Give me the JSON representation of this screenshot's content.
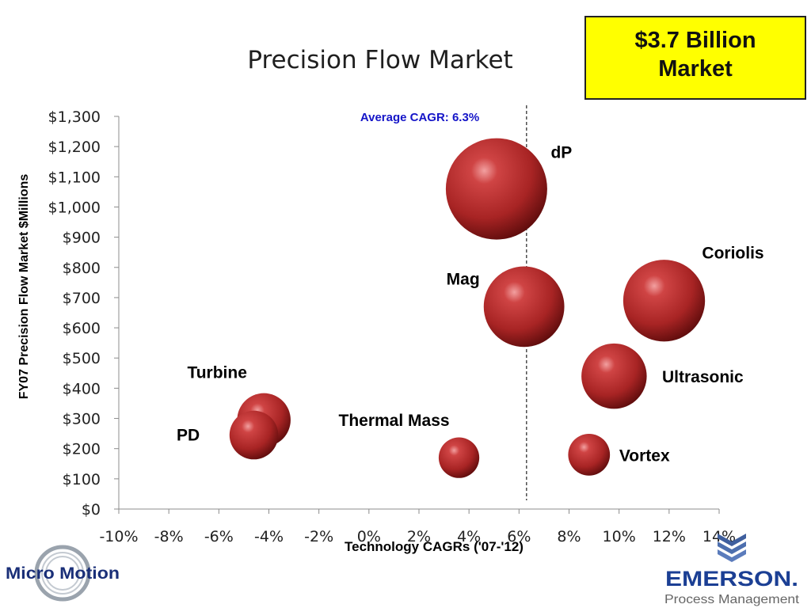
{
  "slide": {
    "title": "Precision Flow Market",
    "callout": "$3.7 Billion Market"
  },
  "logos": {
    "left": {
      "text": "Micro Motion",
      "icon": "micro-motion-ring-logo"
    },
    "right": {
      "brand": "EMERSON.",
      "sub": "Process Management",
      "icon": "emerson-chevron-logo"
    }
  },
  "chart_data": {
    "type": "bubble",
    "title": "Precision Flow Market",
    "xlabel": "Technology CAGRs ('07-'12)",
    "ylabel": "FY07 Precision Flow Market $Millions",
    "xlim": [
      -10,
      14
    ],
    "ylim": [
      0,
      1300
    ],
    "x_tick_labels": [
      "-10%",
      "-8%",
      "-6%",
      "-4%",
      "-2%",
      "0%",
      "2%",
      "4%",
      "6%",
      "8%",
      "10%",
      "12%",
      "14%"
    ],
    "y_tick_labels": [
      "$0",
      "$100",
      "$200",
      "$300",
      "$400",
      "$500",
      "$600",
      "$700",
      "$800",
      "$900",
      "$1,000",
      "$1,100",
      "$1,200",
      "$1,300"
    ],
    "grid": false,
    "reference_line": {
      "x": 6.3,
      "label": "Average CAGR: 6.3%"
    },
    "bubble_color": "#b52a2a",
    "points": [
      {
        "name": "dP",
        "x": 5.1,
        "y": 1060,
        "size": 1060
      },
      {
        "name": "Mag",
        "x": 6.2,
        "y": 670,
        "size": 670
      },
      {
        "name": "Coriolis",
        "x": 11.8,
        "y": 690,
        "size": 690
      },
      {
        "name": "Ultrasonic",
        "x": 9.8,
        "y": 440,
        "size": 440
      },
      {
        "name": "Turbine",
        "x": -4.2,
        "y": 295,
        "size": 295
      },
      {
        "name": "PD",
        "x": -4.6,
        "y": 245,
        "size": 245
      },
      {
        "name": "Thermal Mass",
        "x": 3.6,
        "y": 170,
        "size": 170
      },
      {
        "name": "Vortex",
        "x": 8.8,
        "y": 180,
        "size": 180
      }
    ]
  }
}
